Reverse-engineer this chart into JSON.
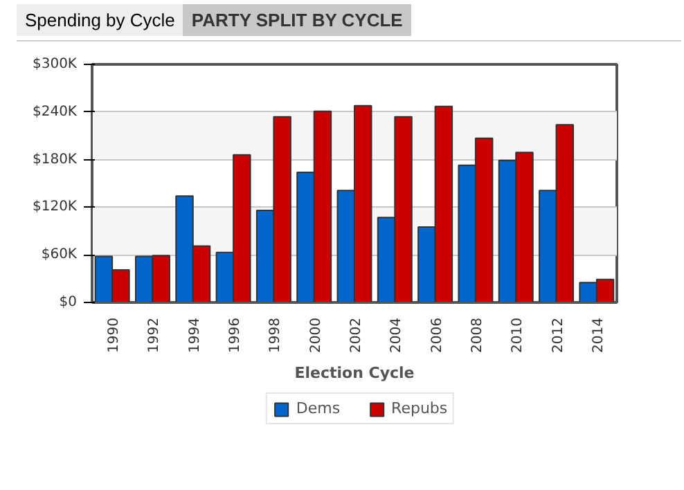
{
  "chart_data": {
    "type": "bar",
    "title": "PARTY SPLIT BY CYCLE",
    "annotations": [
      "Spending by Cycle"
    ],
    "xlabel": "Election Cycle",
    "categories": [
      "1990",
      "1992",
      "1994",
      "1996",
      "1998",
      "2000",
      "2002",
      "2004",
      "2006",
      "2008",
      "2010",
      "2012",
      "2014"
    ],
    "series": [
      {
        "name": "Dems",
        "color": "#0066cc",
        "values": [
          58,
          58,
          134,
          63,
          116,
          164,
          141,
          107,
          95,
          173,
          179,
          141,
          25
        ]
      },
      {
        "name": "Repubs",
        "color": "#cc0000",
        "values": [
          41,
          59,
          71,
          186,
          234,
          241,
          248,
          234,
          247,
          207,
          189,
          224,
          29
        ]
      }
    ],
    "ylim": [
      0,
      300
    ],
    "yticks": [
      {
        "value": 0,
        "label": "$0"
      },
      {
        "value": 60,
        "label": "$60K"
      },
      {
        "value": 120,
        "label": "$120K"
      },
      {
        "value": 180,
        "label": "$180K"
      },
      {
        "value": 240,
        "label": "$240K"
      },
      {
        "value": 300,
        "label": "$300K"
      }
    ],
    "grid": "y",
    "legend": "bottom"
  }
}
